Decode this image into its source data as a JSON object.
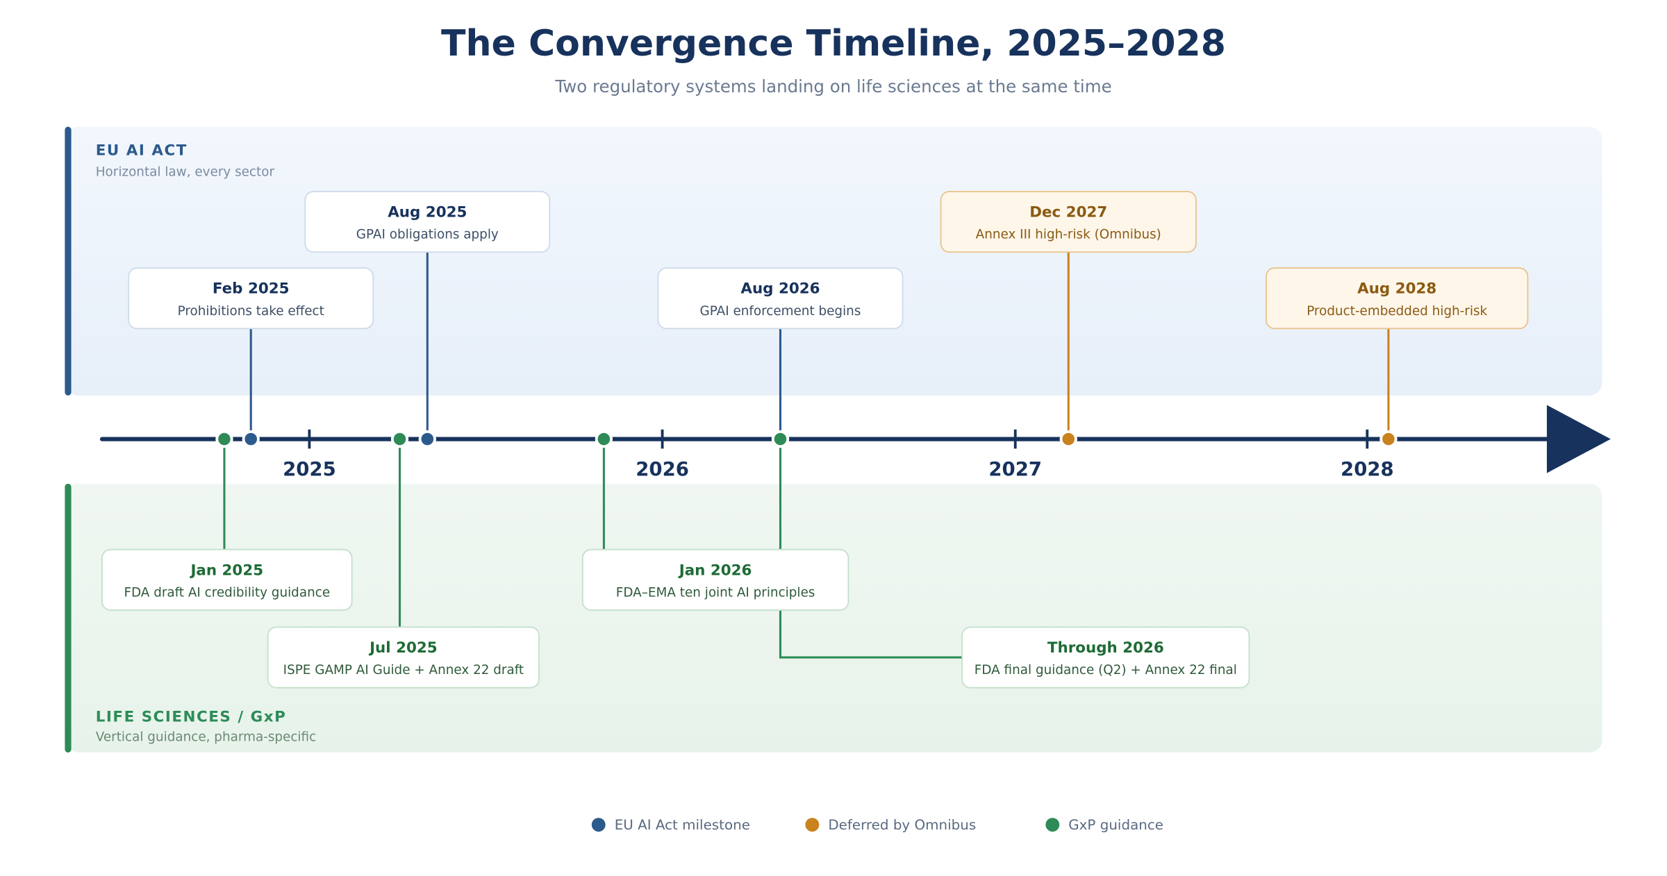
{
  "header": {
    "title": "The Convergence Timeline, 2025–2028",
    "subtitle": "Two regulatory systems landing on life sciences at the same time"
  },
  "lanes": [
    {
      "label": "EU AI ACT",
      "sublabel": "Horizontal law, every sector"
    },
    {
      "label": "LIFE SCIENCES / GxP",
      "sublabel": "Vertical guidance, pharma-specific"
    }
  ],
  "axis": {
    "years": [
      "2025",
      "2026",
      "2027",
      "2028"
    ]
  },
  "milestones": [
    {
      "label": "EU AI Act milestone",
      "color": "#2c5a8c",
      "events": [
        {
          "date": "Feb 2025",
          "description": "Prohibitions take effect"
        },
        {
          "date": "Aug 2025",
          "description": "GPAI obligations apply"
        },
        {
          "date": "Aug 2026",
          "description": "GPAI enforcement begins"
        }
      ]
    },
    {
      "label": "Deferred by Omnibus",
      "color": "#c8821e",
      "events": [
        {
          "date": "Dec 2027",
          "description": "Annex III high-risk (Omnibus)"
        },
        {
          "date": "Aug 2028",
          "description": "Product-embedded high-risk"
        }
      ]
    },
    {
      "label": "GxP guidance",
      "color": "#2e8b57",
      "events": [
        {
          "date": "Jan 2025",
          "description": "FDA draft AI credibility guidance"
        },
        {
          "date": "Jul 2025",
          "description": "ISPE GAMP AI Guide + Annex 22 draft"
        },
        {
          "date": "Jan 2026",
          "description": "FDA–EMA ten joint AI principles"
        },
        {
          "date": "Through 2026",
          "description": "FDA final guidance (Q2) + Annex 22 final"
        }
      ]
    }
  ]
}
